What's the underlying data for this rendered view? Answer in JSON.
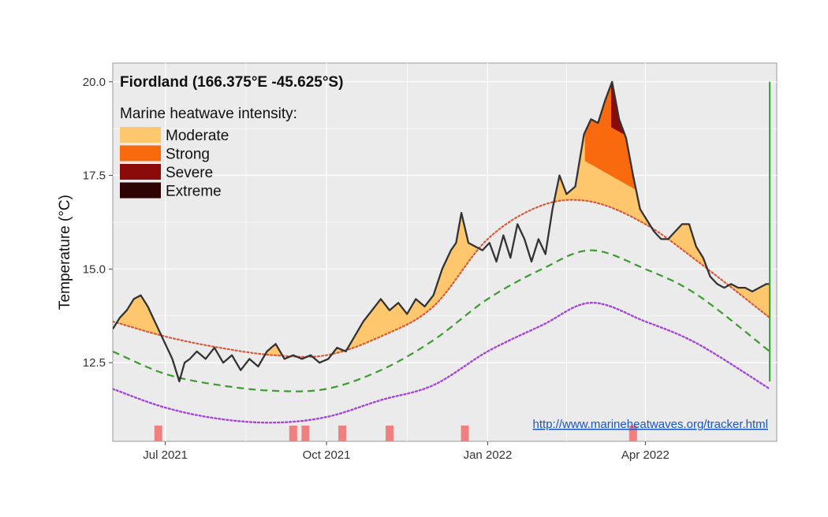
{
  "chart_data": {
    "type": "line",
    "title": "Fiordland (166.375°E -45.625°S)",
    "ylabel": "Temperature (°C)",
    "xlabel": "",
    "x_range": [
      "2021-06-01",
      "2022-06-15"
    ],
    "ylim": [
      10.4,
      20.5
    ],
    "x_ticks": [
      {
        "date": "2021-07-01",
        "label": "Jul 2021"
      },
      {
        "date": "2021-10-01",
        "label": "Oct 2021"
      },
      {
        "date": "2022-01-01",
        "label": "Jan 2022"
      },
      {
        "date": "2022-04-01",
        "label": "Apr 2022"
      }
    ],
    "y_ticks": [
      12.5,
      15.0,
      17.5,
      20.0
    ],
    "y_tick_labels": [
      "12.5",
      "15.0",
      "17.5",
      "20.0"
    ],
    "grid": true,
    "legend": {
      "title": "Marine heatwave intensity:",
      "placement": "top-left",
      "entries": [
        {
          "label": "Moderate",
          "color": "#FEC76D"
        },
        {
          "label": "Strong",
          "color": "#F96A0E"
        },
        {
          "label": "Severe",
          "color": "#8B0A0A"
        },
        {
          "label": "Extreme",
          "color": "#2E0303"
        }
      ]
    },
    "link_text": "http://www.marineheatwaves.org/tracker.html",
    "colors": {
      "panel_bg": "#EBEBEB",
      "grid": "#FFFFFF",
      "observed": "#333333",
      "threshold": "#D9583A",
      "climatology": "#3C9B2F",
      "low_line": "#A646D8",
      "event_markers": "#F08080",
      "latest_marker": "#2EA02E"
    },
    "series": [
      {
        "role": "observed",
        "x": [
          "2021-06-01",
          "2021-06-05",
          "2021-06-09",
          "2021-06-13",
          "2021-06-17",
          "2021-06-21",
          "2021-06-26",
          "2021-07-01",
          "2021-07-05",
          "2021-07-09",
          "2021-07-12",
          "2021-07-15",
          "2021-07-19",
          "2021-07-24",
          "2021-07-29",
          "2021-08-03",
          "2021-08-08",
          "2021-08-13",
          "2021-08-18",
          "2021-08-23",
          "2021-08-28",
          "2021-09-02",
          "2021-09-07",
          "2021-09-12",
          "2021-09-17",
          "2021-09-22",
          "2021-09-27",
          "2021-10-02",
          "2021-10-07",
          "2021-10-12",
          "2021-10-17",
          "2021-10-22",
          "2021-10-27",
          "2021-11-01",
          "2021-11-06",
          "2021-11-11",
          "2021-11-16",
          "2021-11-21",
          "2021-11-26",
          "2021-12-01",
          "2021-12-06",
          "2021-12-11",
          "2021-12-14",
          "2021-12-17",
          "2021-12-21",
          "2021-12-25",
          "2021-12-29",
          "2022-01-02",
          "2022-01-06",
          "2022-01-10",
          "2022-01-14",
          "2022-01-18",
          "2022-01-22",
          "2022-01-26",
          "2022-01-30",
          "2022-02-03",
          "2022-02-07",
          "2022-02-11",
          "2022-02-15",
          "2022-02-20",
          "2022-02-25",
          "2022-03-01",
          "2022-03-05",
          "2022-03-09",
          "2022-03-13",
          "2022-03-17",
          "2022-03-21",
          "2022-03-25",
          "2022-03-29",
          "2022-04-02",
          "2022-04-06",
          "2022-04-10",
          "2022-04-14",
          "2022-04-18",
          "2022-04-22",
          "2022-04-26",
          "2022-04-30",
          "2022-05-04",
          "2022-05-08",
          "2022-05-12",
          "2022-05-16",
          "2022-05-20",
          "2022-05-24",
          "2022-05-28",
          "2022-06-01",
          "2022-06-05",
          "2022-06-09",
          "2022-06-11"
        ],
        "y": [
          13.4,
          13.7,
          13.9,
          14.2,
          14.3,
          14.0,
          13.5,
          13.0,
          12.6,
          12.0,
          12.5,
          12.6,
          12.8,
          12.6,
          12.9,
          12.5,
          12.7,
          12.3,
          12.6,
          12.4,
          12.8,
          13.0,
          12.6,
          12.7,
          12.6,
          12.7,
          12.5,
          12.6,
          12.9,
          12.8,
          13.2,
          13.6,
          13.9,
          14.2,
          13.9,
          14.1,
          13.8,
          14.2,
          14.0,
          14.3,
          15.0,
          15.5,
          15.7,
          16.5,
          15.7,
          15.6,
          15.5,
          15.7,
          15.2,
          15.9,
          15.3,
          16.2,
          15.8,
          15.2,
          15.8,
          15.4,
          16.6,
          17.5,
          17.0,
          17.2,
          18.6,
          19.0,
          18.9,
          19.5,
          20.0,
          19.0,
          18.5,
          17.5,
          16.6,
          16.3,
          16.0,
          15.8,
          15.8,
          16.0,
          16.2,
          16.2,
          15.6,
          15.3,
          14.8,
          14.6,
          14.5,
          14.6,
          14.5,
          14.5,
          14.4,
          14.5,
          14.6,
          14.6
        ]
      },
      {
        "role": "threshold",
        "x": [
          "2021-06-01",
          "2021-07-01",
          "2021-08-01",
          "2021-09-01",
          "2021-10-01",
          "2021-11-01",
          "2021-12-01",
          "2022-01-01",
          "2022-02-01",
          "2022-03-01",
          "2022-04-01",
          "2022-05-01",
          "2022-06-11"
        ],
        "y": [
          13.6,
          13.2,
          12.9,
          12.7,
          12.7,
          13.2,
          14.0,
          15.8,
          16.7,
          16.8,
          16.2,
          15.2,
          13.7
        ]
      },
      {
        "role": "climatology",
        "x": [
          "2021-06-01",
          "2021-07-01",
          "2021-08-01",
          "2021-09-01",
          "2021-10-01",
          "2021-11-01",
          "2021-12-01",
          "2022-01-01",
          "2022-02-01",
          "2022-03-01",
          "2022-04-01",
          "2022-05-01",
          "2022-06-11"
        ],
        "y": [
          12.8,
          12.2,
          11.9,
          11.75,
          11.8,
          12.3,
          13.1,
          14.2,
          15.0,
          15.5,
          15.0,
          14.3,
          12.8
        ]
      },
      {
        "role": "low_line",
        "x": [
          "2021-06-01",
          "2021-07-01",
          "2021-08-01",
          "2021-09-01",
          "2021-10-01",
          "2021-11-01",
          "2021-12-01",
          "2022-01-01",
          "2022-02-01",
          "2022-03-01",
          "2022-04-01",
          "2022-05-01",
          "2022-06-11"
        ],
        "y": [
          11.8,
          11.3,
          11.0,
          10.9,
          11.05,
          11.5,
          11.9,
          12.8,
          13.5,
          14.1,
          13.6,
          13.0,
          11.8
        ]
      }
    ],
    "event_markers": [
      "2021-06-27",
      "2021-09-12",
      "2021-09-19",
      "2021-10-10",
      "2021-11-06",
      "2021-12-19",
      "2022-03-25"
    ],
    "latest_marker": {
      "date": "2022-06-11",
      "y_from": 12.0,
      "y_to": 20.0
    },
    "mhw_intensity_boundaries": {
      "strong": [
        [
          [
            "2022-02-25",
            "2022-03-31"
          ],
          [
            17.9,
            17.0
          ]
        ],
        [
          [
            "2022-05-04",
            "2022-05-22"
          ],
          [
            15.6,
            15.1
          ]
        ]
      ],
      "severe": [
        [
          "2022-03-12",
          "2022-03-31"
        ],
        [
          18.8,
          18.3
        ]
      ],
      "extreme": [
        [
          "2022-03-24",
          "2022-03-31"
        ],
        [
          19.6,
          19.5
        ]
      ]
    }
  }
}
